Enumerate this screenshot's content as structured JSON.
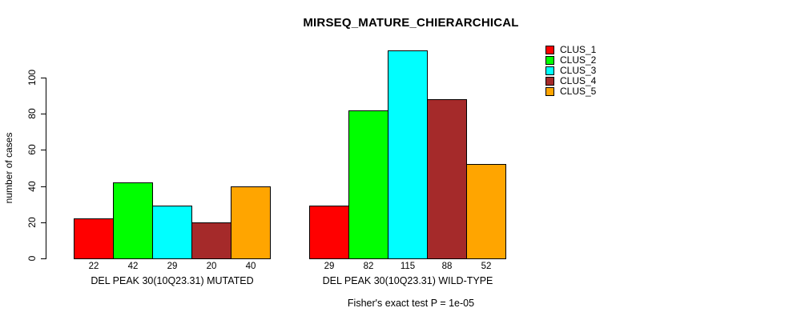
{
  "title": "MIRSEQ_MATURE_CHIERARCHICAL",
  "y_axis_label": "number of cases",
  "footer": "Fisher's exact test P = 1e-05",
  "legend": {
    "items": [
      {
        "label": "CLUS_1",
        "color": "#FF0000"
      },
      {
        "label": "CLUS_2",
        "color": "#00FF00"
      },
      {
        "label": "CLUS_3",
        "color": "#00FFFF"
      },
      {
        "label": "CLUS_4",
        "color": "#A52A2A"
      },
      {
        "label": "CLUS_5",
        "color": "#FFA500"
      }
    ]
  },
  "chart_data": {
    "type": "bar",
    "title": "MIRSEQ_MATURE_CHIERARCHICAL",
    "ylabel": "number of cases",
    "xlabel": "",
    "yticks": [
      0,
      20,
      40,
      60,
      80,
      100
    ],
    "ylim": [
      0,
      115
    ],
    "grid": false,
    "legend_position": "right",
    "series_labels": [
      "CLUS_1",
      "CLUS_2",
      "CLUS_3",
      "CLUS_4",
      "CLUS_5"
    ],
    "series_colors": [
      "#FF0000",
      "#00FF00",
      "#00FFFF",
      "#A52A2A",
      "#FFA500"
    ],
    "groups": [
      {
        "label": "DEL PEAK 30(10Q23.31) MUTATED",
        "values": [
          22,
          42,
          29,
          20,
          40
        ]
      },
      {
        "label": "DEL PEAK 30(10Q23.31) WILD-TYPE",
        "values": [
          29,
          82,
          115,
          88,
          52
        ]
      }
    ],
    "bar_value_labels_shown": true,
    "annotation": "Fisher's exact test P = 1e-05"
  }
}
